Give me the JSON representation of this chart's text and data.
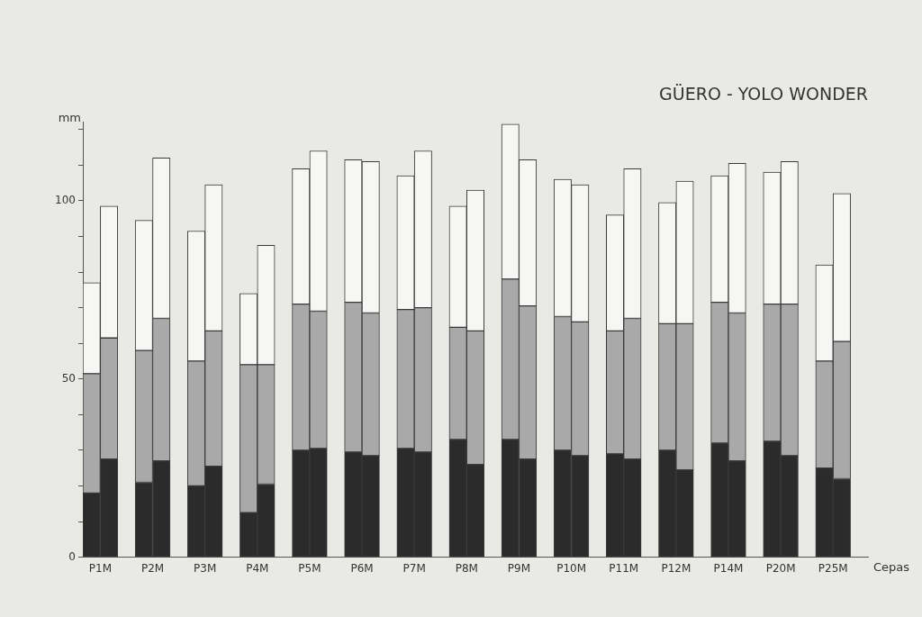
{
  "chart_data": {
    "type": "bar",
    "title": "GÜERO - YOLO WONDER",
    "ylabel": "mm",
    "xlabel": "Cepas",
    "stacked": true,
    "categories": [
      "P1M",
      null,
      null,
      "P2M",
      null,
      null,
      "P3M",
      null,
      null,
      "P4M",
      null,
      null,
      "P5M",
      null,
      null,
      "P6M",
      null,
      null,
      "P7M",
      null,
      null,
      "P8M",
      null,
      null,
      "P9M",
      null,
      null,
      "P10M",
      null,
      null,
      "P11M",
      null,
      null,
      "P12M",
      null,
      null,
      "P14M",
      null,
      null,
      "P20M",
      null,
      null,
      "P25M",
      null,
      null
    ],
    "ylim": [
      0,
      122
    ],
    "yticks": [
      0,
      {
        "value": 10,
        "label": null
      },
      {
        "value": 20,
        "label": null
      },
      {
        "value": 30,
        "label": null
      },
      {
        "value": 40,
        "label": null
      },
      50,
      {
        "value": 60,
        "label": null
      },
      {
        "value": 70,
        "label": null
      },
      {
        "value": 80,
        "label": null
      },
      {
        "value": 90,
        "label": null
      },
      100,
      {
        "value": 110,
        "label": null
      },
      {
        "value": 120,
        "label": null
      }
    ],
    "series": [
      {
        "color": "#2b2b2b",
        "values": [
          18,
          27.5,
          null,
          21,
          27,
          null,
          20,
          25.5,
          null,
          12.5,
          20.5,
          null,
          30,
          30.5,
          null,
          29.5,
          28.5,
          null,
          30.5,
          29.5,
          null,
          33,
          26,
          null,
          33,
          27.5,
          null,
          30,
          28.5,
          null,
          29,
          27.5,
          null,
          30,
          24.5,
          null,
          32,
          27,
          null,
          32.5,
          28.5,
          null,
          25,
          22,
          null
        ]
      },
      {
        "color": "#a9a9a9",
        "values": [
          33.5,
          34,
          null,
          37,
          40,
          null,
          35,
          38,
          null,
          41.5,
          33.5,
          null,
          41,
          38.5,
          null,
          42,
          40,
          null,
          39,
          40.5,
          null,
          31.5,
          37.5,
          null,
          45,
          43,
          null,
          37.5,
          37.5,
          null,
          34.5,
          39.5,
          null,
          35.5,
          41,
          null,
          39.5,
          41.5,
          null,
          38.5,
          42.5,
          null,
          30,
          38.5,
          null
        ]
      },
      {
        "color": "#f6f6f4",
        "values": [
          25.5,
          37,
          null,
          36.5,
          45,
          null,
          36.5,
          41,
          null,
          20,
          33.5,
          null,
          38,
          45,
          null,
          40,
          42.5,
          null,
          37.5,
          44,
          null,
          34,
          39.5,
          null,
          43.5,
          41,
          null,
          38.5,
          38.5,
          null,
          32.5,
          42,
          null,
          34,
          40,
          null,
          35.5,
          42,
          null,
          37,
          40,
          null,
          27,
          41.5,
          null
        ]
      }
    ]
  }
}
